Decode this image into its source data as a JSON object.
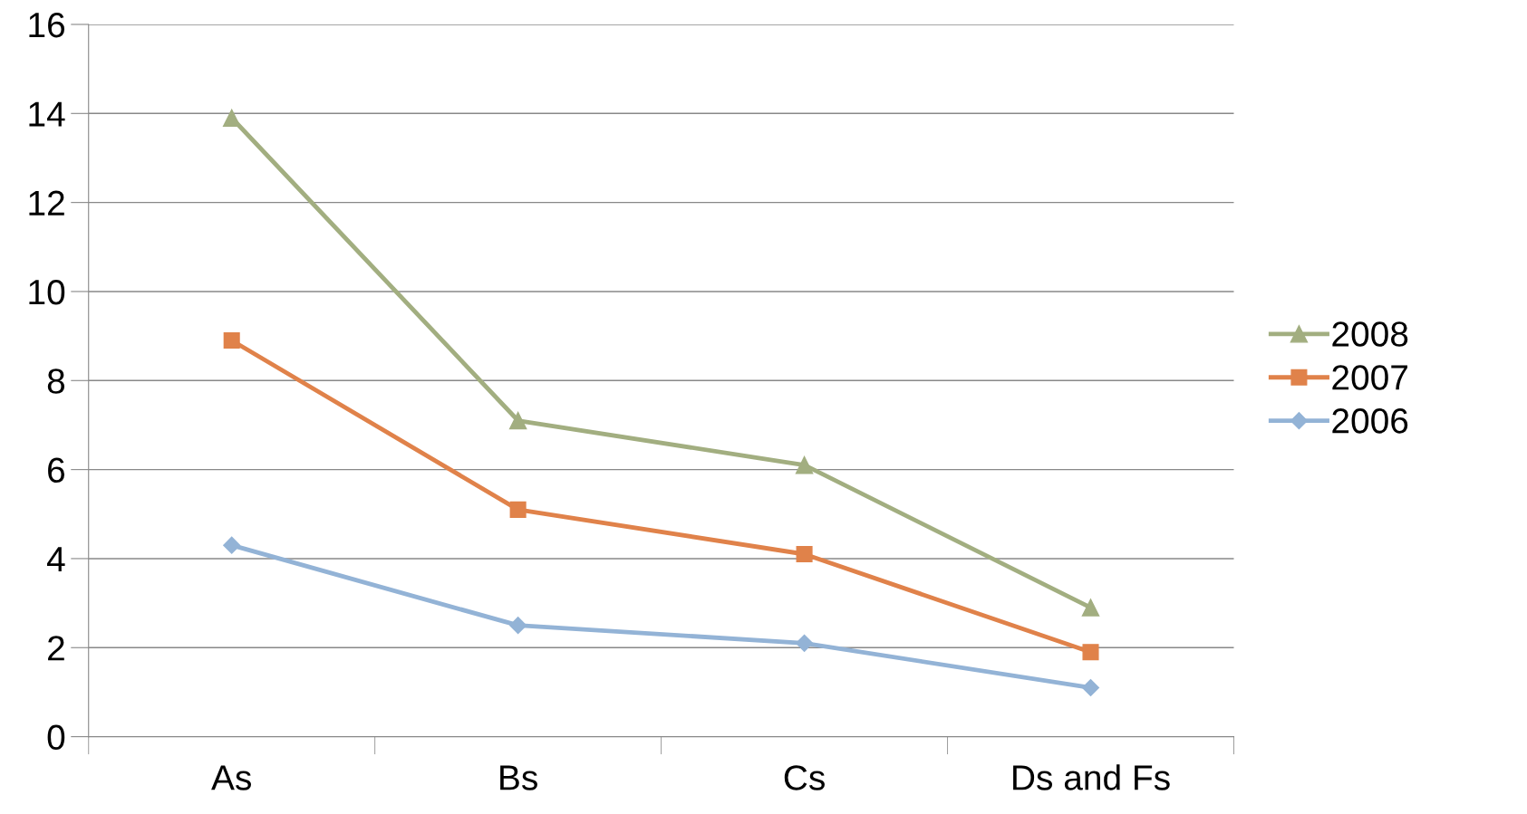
{
  "chart_data": {
    "type": "line",
    "categories": [
      "As",
      "Bs",
      "Cs",
      "Ds and Fs"
    ],
    "series": [
      {
        "name": "2008",
        "color": "#a2ae80",
        "marker": "triangle",
        "values": [
          13.9,
          7.1,
          6.1,
          2.9
        ]
      },
      {
        "name": "2007",
        "color": "#e0824a",
        "marker": "square",
        "values": [
          8.9,
          5.1,
          4.1,
          1.9
        ]
      },
      {
        "name": "2006",
        "color": "#93b3d6",
        "marker": "diamond",
        "values": [
          4.3,
          2.5,
          2.1,
          1.1
        ]
      }
    ],
    "ylim": [
      0,
      16
    ],
    "yticks": [
      0,
      2,
      4,
      6,
      8,
      10,
      12,
      14,
      16
    ],
    "grid": "y",
    "legend": "right",
    "line_style": "solid"
  }
}
